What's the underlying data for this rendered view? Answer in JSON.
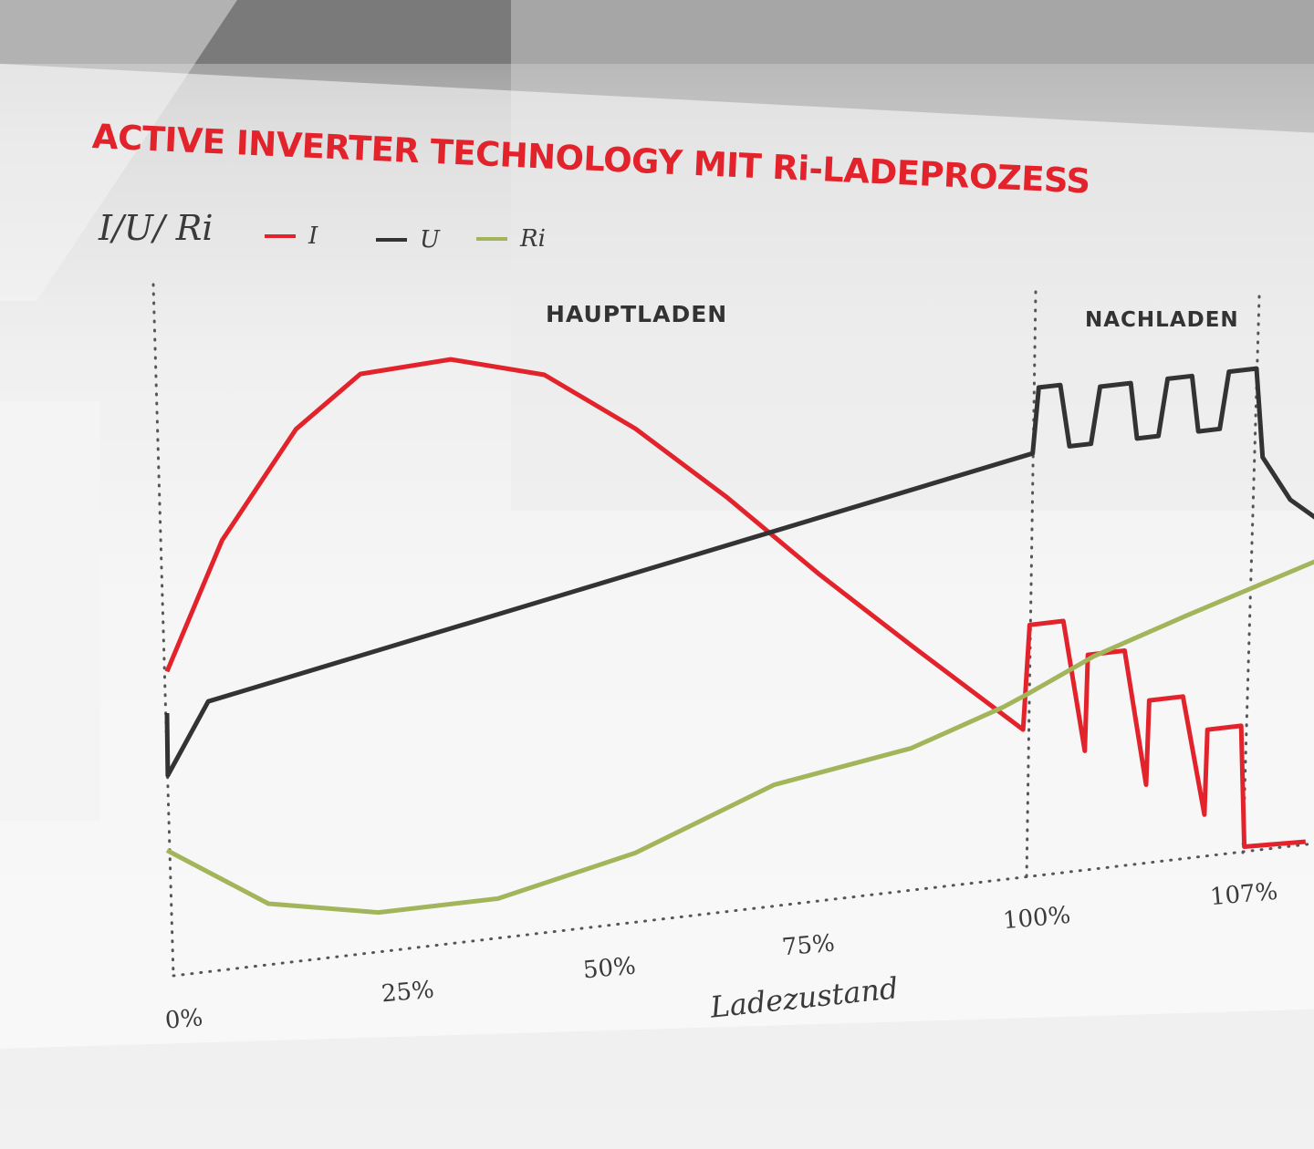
{
  "chart_data": {
    "type": "line",
    "title": "ACTIVE INVERTER TECHNOLOGY MIT Ri-LADEPROZESS",
    "ylabel": "I/U/ Ri",
    "xlabel": "Ladezustand",
    "x_ticks": [
      "0%",
      "25%",
      "50%",
      "75%",
      "100%",
      "107%"
    ],
    "phases": [
      "HAUPTLADEN",
      "NACHLADEN"
    ],
    "legend_placement": "top-left",
    "grid": false,
    "y_scale": "relative, unlabelled",
    "series": [
      {
        "name": "I",
        "color": "#e3232b",
        "points": [
          [
            0,
            44
          ],
          [
            6.4,
            62
          ],
          [
            15,
            76.8
          ],
          [
            22.5,
            83.7
          ],
          [
            33,
            84.3
          ],
          [
            43.9,
            80.5
          ],
          [
            54.5,
            71.2
          ],
          [
            65.2,
            59.7
          ],
          [
            75.9,
            47.1
          ],
          [
            86.6,
            35.3
          ],
          [
            99.6,
            21.3
          ],
          [
            100.1,
            36.3
          ],
          [
            101.2,
            36.3
          ],
          [
            101.9,
            17.2
          ],
          [
            102,
            31
          ],
          [
            103.2,
            31
          ],
          [
            103.9,
            11.3
          ],
          [
            104,
            23.4
          ],
          [
            105.1,
            23.4
          ],
          [
            105.8,
            6
          ],
          [
            105.9,
            18.2
          ],
          [
            107,
            18.2
          ],
          [
            107.1,
            0.7
          ],
          [
            109.1,
            0.4
          ]
        ]
      },
      {
        "name": "U",
        "color": "#333333",
        "points": [
          [
            0,
            38
          ],
          [
            0.1,
            29
          ],
          [
            4.8,
            39
          ],
          [
            100.2,
            61
          ],
          [
            100.4,
            70.4
          ],
          [
            101.1,
            70.4
          ],
          [
            101.4,
            61.4
          ],
          [
            102.1,
            61.4
          ],
          [
            102.4,
            69.5
          ],
          [
            103.4,
            69.5
          ],
          [
            103.6,
            61.4
          ],
          [
            104.3,
            61.4
          ],
          [
            104.6,
            69.5
          ],
          [
            105.4,
            69.5
          ],
          [
            105.6,
            61.4
          ],
          [
            106.3,
            61.4
          ],
          [
            106.6,
            69.5
          ],
          [
            107.5,
            69.5
          ],
          [
            107.7,
            56.6
          ],
          [
            108.6,
            50
          ],
          [
            109.5,
            46.7
          ]
        ]
      },
      {
        "name": "Ri",
        "color": "#a3b55a",
        "points": [
          [
            0,
            18.2
          ],
          [
            11.8,
            8.8
          ],
          [
            24.6,
            5.7
          ],
          [
            38.5,
            5.7
          ],
          [
            54.5,
            10
          ],
          [
            70.6,
            17.5
          ],
          [
            86.6,
            20.5
          ],
          [
            97.3,
            24.9
          ],
          [
            100,
            26.3
          ],
          [
            102.2,
            30.7
          ],
          [
            105.2,
            35
          ],
          [
            109.5,
            40.8
          ]
        ]
      }
    ]
  }
}
